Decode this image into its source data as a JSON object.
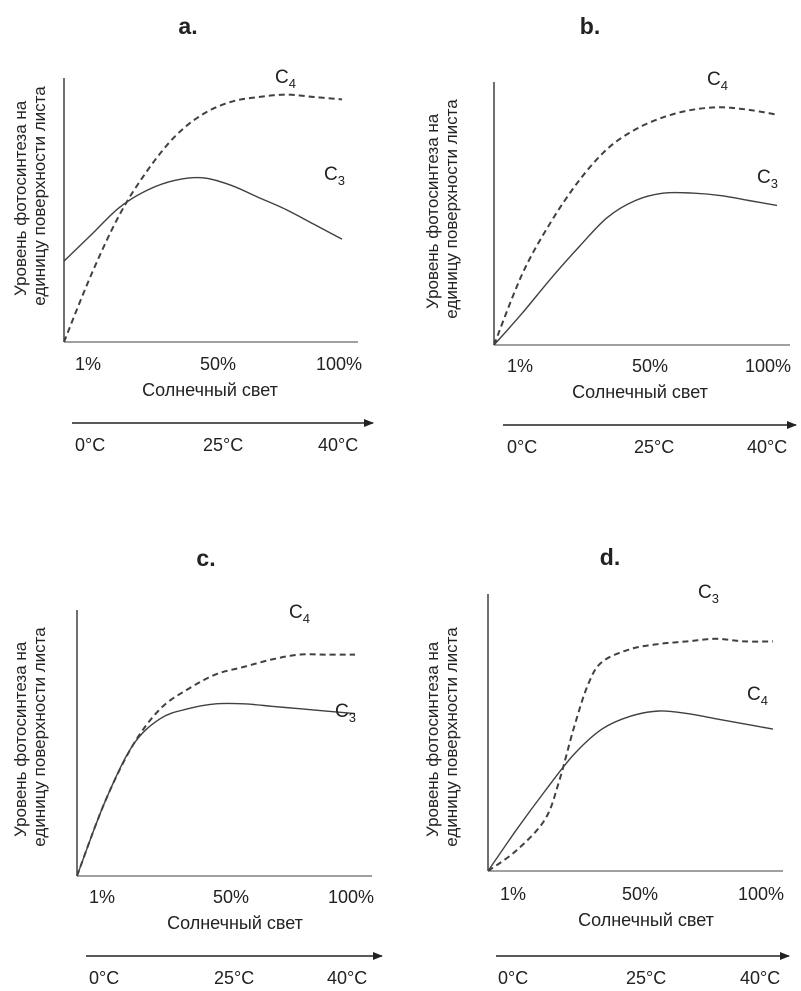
{
  "colors": {
    "line": "#404040",
    "text": "#222222",
    "background": "#ffffff"
  },
  "chart_data": [
    {
      "type": "line",
      "panel": "a.",
      "ylabel_lines": [
        "Уровень фотосинтеза на",
        "единицу поверхности листа"
      ],
      "xlabel": "Солнечный свет",
      "x_ticks": [
        "1%",
        "50%",
        "100%"
      ],
      "temperature_ticks": [
        "0°C",
        "25°C",
        "40°C"
      ],
      "series": [
        {
          "name": "C",
          "subscript": "4",
          "style": "dashed",
          "points": [
            [
              0,
              0
            ],
            [
              10,
              28
            ],
            [
              20,
              52
            ],
            [
              30,
              70
            ],
            [
              40,
              84
            ],
            [
              50,
              93
            ],
            [
              60,
              98
            ],
            [
              70,
              100
            ],
            [
              80,
              101
            ],
            [
              90,
              100
            ],
            [
              100,
              99
            ]
          ]
        },
        {
          "name": "C",
          "subscript": "3",
          "style": "solid",
          "points": [
            [
              0,
              33
            ],
            [
              10,
              44
            ],
            [
              20,
              55
            ],
            [
              30,
              62
            ],
            [
              40,
              66
            ],
            [
              50,
              67
            ],
            [
              60,
              64
            ],
            [
              70,
              59
            ],
            [
              80,
              54
            ],
            [
              90,
              48
            ],
            [
              100,
              42
            ]
          ]
        }
      ]
    },
    {
      "type": "line",
      "panel": "b.",
      "ylabel_lines": [
        "Уровень фотосинтеза на",
        "единицу поверхности листа"
      ],
      "xlabel": "Солнечный свет",
      "x_ticks": [
        "1%",
        "50%",
        "100%"
      ],
      "temperature_ticks": [
        "0°C",
        "25°C",
        "40°C"
      ],
      "series": [
        {
          "name": "C",
          "subscript": "4",
          "style": "dashed",
          "points": [
            [
              0,
              0
            ],
            [
              10,
              29
            ],
            [
              20,
              50
            ],
            [
              30,
              67
            ],
            [
              40,
              80
            ],
            [
              50,
              88
            ],
            [
              60,
              93
            ],
            [
              70,
              96
            ],
            [
              80,
              97
            ],
            [
              90,
              96
            ],
            [
              100,
              94
            ]
          ]
        },
        {
          "name": "C",
          "subscript": "3",
          "style": "solid",
          "points": [
            [
              0,
              0
            ],
            [
              10,
              13
            ],
            [
              20,
              27
            ],
            [
              30,
              40
            ],
            [
              40,
              52
            ],
            [
              50,
              59
            ],
            [
              60,
              62
            ],
            [
              70,
              62
            ],
            [
              80,
              61
            ],
            [
              90,
              59
            ],
            [
              100,
              57
            ]
          ]
        }
      ]
    },
    {
      "type": "line",
      "panel": "c.",
      "ylabel_lines": [
        "Уровень фотосинтеза на",
        "единицу поверхности листа"
      ],
      "xlabel": "Солнечный свет",
      "x_ticks": [
        "1%",
        "50%",
        "100%"
      ],
      "temperature_ticks": [
        "0°C",
        "25°C",
        "40°C"
      ],
      "series": [
        {
          "name": "C",
          "subscript": "4",
          "style": "dashed",
          "points": [
            [
              0,
              0
            ],
            [
              10,
              30
            ],
            [
              20,
              53
            ],
            [
              30,
              68
            ],
            [
              40,
              76
            ],
            [
              50,
              82
            ],
            [
              60,
              85
            ],
            [
              70,
              88
            ],
            [
              80,
              90
            ],
            [
              90,
              90
            ],
            [
              100,
              90
            ]
          ]
        },
        {
          "name": "C",
          "subscript": "3",
          "style": "solid",
          "points": [
            [
              0,
              0
            ],
            [
              10,
              30
            ],
            [
              20,
              53
            ],
            [
              30,
              64
            ],
            [
              40,
              68
            ],
            [
              50,
              70
            ],
            [
              60,
              70
            ],
            [
              70,
              69
            ],
            [
              80,
              68
            ],
            [
              90,
              67
            ],
            [
              100,
              66
            ]
          ]
        }
      ]
    },
    {
      "type": "line",
      "panel": "d.",
      "ylabel_lines": [
        "Уровень фотосинтеза на",
        "единицу поверхности листа"
      ],
      "xlabel": "Солнечный свет",
      "x_ticks": [
        "1%",
        "50%",
        "100%"
      ],
      "temperature_ticks": [
        "0°C",
        "25°C",
        "40°C"
      ],
      "series": [
        {
          "name": "C",
          "subscript": "3",
          "style": "dashed",
          "points": [
            [
              0,
              0
            ],
            [
              10,
              8
            ],
            [
              20,
              20
            ],
            [
              25,
              35
            ],
            [
              30,
              55
            ],
            [
              35,
              72
            ],
            [
              40,
              81
            ],
            [
              50,
              86
            ],
            [
              60,
              88
            ],
            [
              70,
              89
            ],
            [
              80,
              90
            ],
            [
              90,
              89
            ],
            [
              100,
              89
            ]
          ]
        },
        {
          "name": "C",
          "subscript": "4",
          "style": "solid",
          "points": [
            [
              0,
              0
            ],
            [
              10,
              16
            ],
            [
              20,
              31
            ],
            [
              30,
              45
            ],
            [
              40,
              55
            ],
            [
              50,
              60
            ],
            [
              60,
              62
            ],
            [
              70,
              61
            ],
            [
              80,
              59
            ],
            [
              90,
              57
            ],
            [
              100,
              55
            ]
          ]
        }
      ]
    }
  ]
}
